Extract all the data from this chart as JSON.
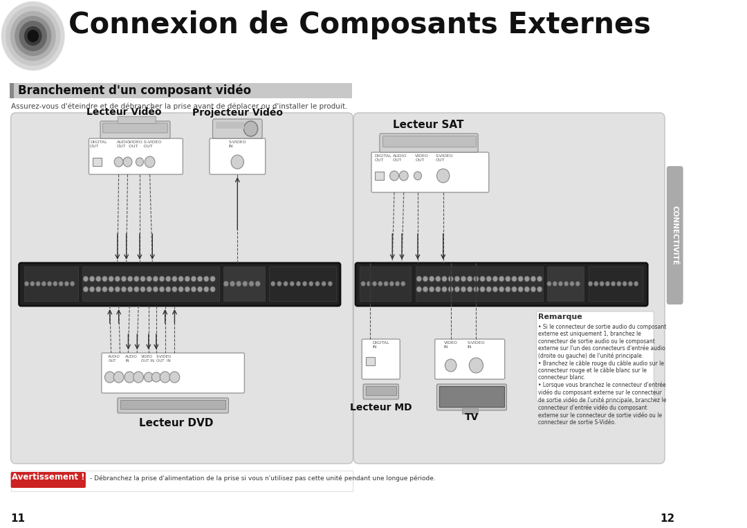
{
  "title": "Connexion de Composants Externes",
  "section_title": "Branchement d'un composant vidéo",
  "warning_label": "Avertissement !",
  "warning_text": "- Débranchez la prise d'alimentation de la prise si vous n'utilisez pas cette unité pendant une longue période.",
  "safety_text": "Assurez-vous d'éteindre et de débrancher la prise avant de déplacer ou d'installer le produit.",
  "page_left": "11",
  "page_right": "12",
  "tab_text": "CONNECTIVITÉ",
  "lv_label": "Lecteur Vidéo",
  "pv_label": "Projecteur Vidéo",
  "dvd_label": "Lecteur DVD",
  "sat_label": "Lecteur SAT",
  "md_label": "Lecteur MD",
  "tv_label": "TV",
  "note_title": "Remarque",
  "note_text": "• Si le connecteur de sortie audio du composant\nexterne est uniquement 1, branchez le\nconnecteur de sortie audio ou le composant\nexterne sur l'un des connecteurs d'entrée audio\n(droite ou gauche) de l'unité principale.\n• Branchez le câble rouge du câble audio sur le\nconnecteur rouge et le câble blanc sur le\nconnecteur blanc.\n• Lorsque vous branchez le connecteur d'entrée\nvidéo du composant externe sur le connecteur\nde sortie vidéo de l'unité principale, branchez le\nconnecteur d'entrée vidéo du composant\nexterne sur le connecteur de sortie vidéo ou le\nconnecteur de sortie S-Vidéo.",
  "bg_color": "#ffffff",
  "panel_bg": "#e2e2e2",
  "avr_dark": "#2a2a2a",
  "connector_gray": "#aaaaaa",
  "white": "#ffffff"
}
